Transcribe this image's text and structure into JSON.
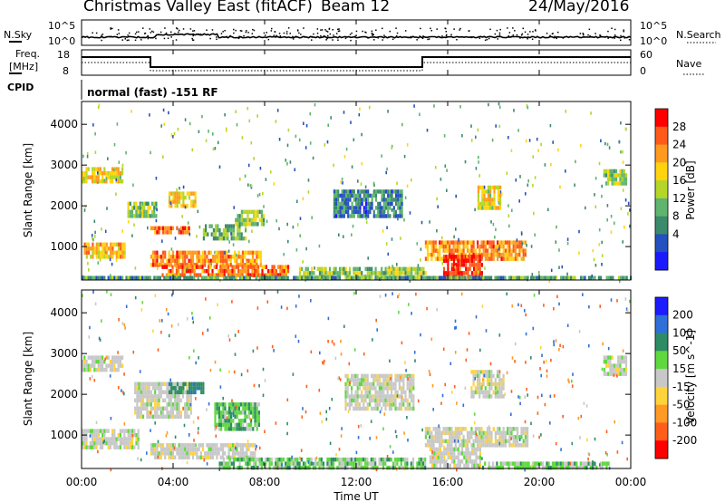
{
  "header": {
    "title": "Christmas Valley East (fitACF)",
    "beam": "Beam 12",
    "date": "24/May/2016"
  },
  "noise_panel": {
    "left_label": "N.Sky",
    "right_label": "N.Search",
    "left_ticks": [
      "10^5",
      "10^0"
    ],
    "right_ticks": [
      "10^5",
      "10^0"
    ]
  },
  "freq_panel": {
    "left_label_1": "Freq.",
    "left_label_2": "[MHz]",
    "right_label": "Nave",
    "left_ticks": [
      "18",
      "8"
    ],
    "right_ticks": [
      "60",
      "0"
    ]
  },
  "cpid": {
    "label": "CPID",
    "value": "normal (fast) -151 RF"
  },
  "power_colorbar": {
    "label": "Power [dB]",
    "ticks": [
      "28",
      "24",
      "20",
      "16",
      "12",
      "8",
      "4"
    ],
    "colors": [
      "#ff0000",
      "#ff5a1a",
      "#ff9a1f",
      "#ffd40f",
      "#b4d628",
      "#5fb46e",
      "#3c8a6c",
      "#2450c0",
      "#1a1aff"
    ]
  },
  "velocity_colorbar": {
    "label": "Velocity [m s^-1]",
    "ticks": [
      "200",
      "100",
      "50",
      "15",
      "-15",
      "-50",
      "-100",
      "-200"
    ],
    "colors": [
      "#1c1cff",
      "#2f6fd8",
      "#2e8c64",
      "#5fd840",
      "#c8c8c8",
      "#ffd43b",
      "#ff9a24",
      "#ff5e1a",
      "#ff0000"
    ]
  },
  "axes": {
    "ylabel": "Slant Range [km]",
    "xlabel": "Time UT",
    "yticks": [
      "4000",
      "3000",
      "2000",
      "1000"
    ],
    "xticks": [
      "00:00",
      "04:00",
      "08:00",
      "12:00",
      "16:00",
      "20:00",
      "00:00"
    ]
  },
  "chart_data": [
    {
      "type": "heatmap",
      "panel": "power",
      "xlabel": "Time UT",
      "ylabel": "Slant Range [km]",
      "xlim": [
        0,
        24
      ],
      "ylim": [
        180,
        4560
      ],
      "colorbar_label": "Power [dB]",
      "clim": [
        0,
        30
      ],
      "blobs": [
        {
          "t0": 0.0,
          "t1": 1.8,
          "r0": 2550,
          "r1": 2950,
          "value": 18
        },
        {
          "t0": 0.1,
          "t1": 1.9,
          "r0": 700,
          "r1": 1100,
          "value": 20
        },
        {
          "t0": 2.0,
          "t1": 3.3,
          "r0": 1750,
          "r1": 2100,
          "value": 14
        },
        {
          "t0": 3.8,
          "t1": 5.0,
          "r0": 1950,
          "r1": 2350,
          "value": 18
        },
        {
          "t0": 3.0,
          "t1": 4.7,
          "r0": 1300,
          "r1": 1500,
          "value": 24
        },
        {
          "t0": 3.0,
          "t1": 7.8,
          "r0": 500,
          "r1": 900,
          "value": 22
        },
        {
          "t0": 5.3,
          "t1": 7.2,
          "r0": 1150,
          "r1": 1550,
          "value": 12
        },
        {
          "t0": 6.7,
          "t1": 8.0,
          "r0": 1550,
          "r1": 1900,
          "value": 14
        },
        {
          "t0": 3.5,
          "t1": 9.0,
          "r0": 250,
          "r1": 550,
          "value": 24
        },
        {
          "t0": 9.5,
          "t1": 15.0,
          "r0": 250,
          "r1": 500,
          "value": 14
        },
        {
          "t0": 11.0,
          "t1": 14.0,
          "r0": 1700,
          "r1": 2400,
          "value": 8
        },
        {
          "t0": 15.0,
          "t1": 19.4,
          "r0": 700,
          "r1": 1150,
          "value": 22
        },
        {
          "t0": 15.8,
          "t1": 17.5,
          "r0": 250,
          "r1": 800,
          "value": 28
        },
        {
          "t0": 17.3,
          "t1": 18.3,
          "r0": 1900,
          "r1": 2500,
          "value": 18
        },
        {
          "t0": 22.8,
          "t1": 23.8,
          "r0": 2500,
          "r1": 2900,
          "value": 14
        },
        {
          "t0": 0.0,
          "t1": 24.0,
          "r0": 180,
          "r1": 280,
          "value": 10
        }
      ]
    },
    {
      "type": "heatmap",
      "panel": "velocity",
      "xlabel": "Time UT",
      "ylabel": "Slant Range [km]",
      "xlim": [
        0,
        24
      ],
      "ylim": [
        180,
        4560
      ],
      "colorbar_label": "Velocity [m s^-1]",
      "clim": [
        -250,
        250
      ],
      "blobs": [
        {
          "t0": 0.0,
          "t1": 1.8,
          "r0": 2550,
          "r1": 2950,
          "value": 0
        },
        {
          "t0": 0.0,
          "t1": 2.5,
          "r0": 650,
          "r1": 1150,
          "value": 0
        },
        {
          "t0": 2.3,
          "t1": 4.8,
          "r0": 1400,
          "r1": 2300,
          "value": 0
        },
        {
          "t0": 3.8,
          "t1": 5.3,
          "r0": 2000,
          "r1": 2300,
          "value": 60
        },
        {
          "t0": 3.0,
          "t1": 7.6,
          "r0": 400,
          "r1": 800,
          "value": 0
        },
        {
          "t0": 5.8,
          "t1": 7.8,
          "r0": 1150,
          "r1": 1800,
          "value": 30
        },
        {
          "t0": 6.0,
          "t1": 15.0,
          "r0": 180,
          "r1": 450,
          "value": 25
        },
        {
          "t0": 11.5,
          "t1": 14.5,
          "r0": 1600,
          "r1": 2500,
          "value": 0
        },
        {
          "t0": 15.0,
          "t1": 19.5,
          "r0": 700,
          "r1": 1200,
          "value": 0
        },
        {
          "t0": 15.2,
          "t1": 17.4,
          "r0": 250,
          "r1": 700,
          "value": 0
        },
        {
          "t0": 17.0,
          "t1": 18.4,
          "r0": 1900,
          "r1": 2600,
          "value": 0
        },
        {
          "t0": 17.5,
          "t1": 23.0,
          "r0": 180,
          "r1": 350,
          "value": 20
        },
        {
          "t0": 22.8,
          "t1": 23.8,
          "r0": 2500,
          "r1": 2950,
          "value": 0
        }
      ]
    }
  ]
}
